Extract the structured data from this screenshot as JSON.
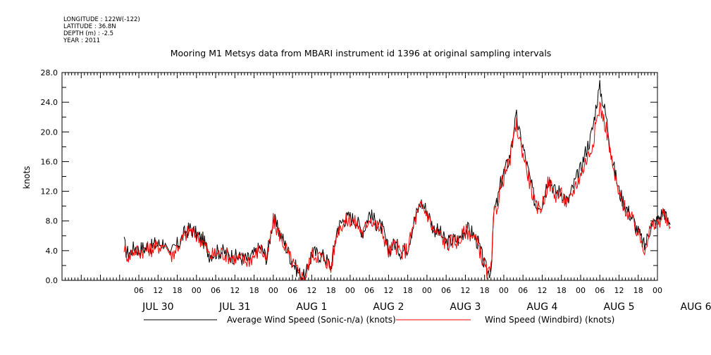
{
  "header": {
    "meta_lines": [
      "LONGITUDE : 122W(-122)",
      "LATITUDE : 36.8N",
      "DEPTH (m) : -2.5",
      "YEAR : 2011"
    ]
  },
  "chart_data": {
    "type": "line",
    "title": "Mooring M1 Metsys data from MBARI instrument id 1396 at original sampling intervals",
    "xlabel": "",
    "ylabel": "knots",
    "ylim": [
      0,
      28
    ],
    "y_ticks": [
      "0.0",
      "4.0",
      "8.0",
      "12.0",
      "16.0",
      "20.0",
      "24.0",
      "28.0"
    ],
    "xlim": [
      -18,
      168
    ],
    "x_hour_ticks": [
      {
        "x": 6,
        "label": "06"
      },
      {
        "x": 12,
        "label": "12"
      },
      {
        "x": 18,
        "label": "18"
      },
      {
        "x": 24,
        "label": "00"
      },
      {
        "x": 30,
        "label": "06"
      },
      {
        "x": 36,
        "label": "12"
      },
      {
        "x": 42,
        "label": "18"
      },
      {
        "x": 48,
        "label": "00"
      },
      {
        "x": 54,
        "label": "06"
      },
      {
        "x": 60,
        "label": "12"
      },
      {
        "x": 66,
        "label": "18"
      },
      {
        "x": 72,
        "label": "00"
      },
      {
        "x": 78,
        "label": "06"
      },
      {
        "x": 84,
        "label": "12"
      },
      {
        "x": 90,
        "label": "18"
      },
      {
        "x": 96,
        "label": "00"
      },
      {
        "x": 102,
        "label": "06"
      },
      {
        "x": 108,
        "label": "12"
      },
      {
        "x": 114,
        "label": "18"
      },
      {
        "x": 120,
        "label": "00"
      },
      {
        "x": 126,
        "label": "06"
      },
      {
        "x": 132,
        "label": "12"
      },
      {
        "x": 138,
        "label": "18"
      },
      {
        "x": 144,
        "label": "00"
      },
      {
        "x": 150,
        "label": "06"
      },
      {
        "x": 156,
        "label": "12"
      },
      {
        "x": 162,
        "label": "18"
      },
      {
        "x": 168,
        "label": "00"
      }
    ],
    "x_day_labels": [
      {
        "x": 12,
        "label": "JUL 30"
      },
      {
        "x": 36,
        "label": "JUL 31"
      },
      {
        "x": 60,
        "label": "AUG  1"
      },
      {
        "x": 84,
        "label": "AUG  2"
      },
      {
        "x": 108,
        "label": "AUG  3"
      },
      {
        "x": 132,
        "label": "AUG  4"
      },
      {
        "x": 156,
        "label": "AUG  5"
      },
      {
        "x": 180,
        "label": "AUG  6"
      }
    ],
    "x_units": "hours since 2011-07-30 00:00",
    "grid": false,
    "legend_position": "bottom",
    "series": [
      {
        "name": "Average Wind Speed (Sonic-n/a) (knots)",
        "color": "#000000",
        "x": [
          1.4,
          2,
          3,
          4,
          5,
          6,
          7,
          8,
          9,
          10,
          11,
          12,
          13,
          14,
          16,
          18,
          19,
          20,
          22,
          24,
          26,
          28,
          30,
          32,
          34,
          36,
          38,
          40,
          42,
          44,
          46,
          48,
          49,
          50,
          52,
          54,
          56,
          58,
          60,
          62,
          64,
          66,
          68,
          70,
          72,
          74,
          76,
          78,
          80,
          82,
          84,
          86,
          88,
          90,
          92,
          94,
          96,
          98,
          100,
          102,
          104,
          106,
          108,
          110,
          112,
          114,
          115,
          116,
          117,
          118,
          119,
          120,
          121,
          122,
          123,
          124,
          125,
          126,
          128,
          130,
          132,
          134,
          136,
          138,
          140,
          142,
          144,
          146,
          147,
          148,
          149,
          150,
          151,
          152,
          154,
          156,
          158,
          160,
          162,
          164,
          166,
          168,
          170,
          171,
          172
        ],
        "y": [
          5.0,
          4.0,
          3.5,
          4.2,
          4.5,
          4.0,
          4.4,
          4.3,
          4.7,
          4.5,
          4.9,
          4.8,
          5.0,
          5.2,
          3.5,
          4.8,
          5.3,
          6.2,
          7.0,
          6.2,
          5.5,
          3.5,
          3.8,
          3.9,
          3.5,
          3.2,
          3.0,
          2.8,
          3.5,
          4.5,
          3.0,
          8.5,
          7.3,
          6.5,
          4.5,
          2.5,
          1.0,
          0.3,
          3.8,
          3.5,
          3.2,
          1.8,
          7.0,
          8.2,
          8.5,
          8.0,
          6.5,
          9.0,
          7.8,
          7.0,
          4.0,
          5.0,
          3.8,
          4.5,
          8.0,
          10.5,
          9.5,
          7.0,
          6.5,
          5.0,
          5.5,
          5.5,
          7.0,
          6.5,
          5.0,
          2.0,
          1.0,
          1.5,
          9.5,
          10.5,
          13.0,
          14.5,
          15.5,
          17.0,
          20.0,
          22.0,
          19.5,
          18.0,
          14.0,
          10.0,
          10.5,
          14.0,
          12.0,
          12.0,
          10.5,
          13.0,
          15.0,
          18.0,
          19.0,
          21.0,
          24.0,
          26.0,
          24.0,
          22.0,
          16.0,
          12.0,
          10.0,
          8.5,
          6.5,
          4.5,
          7.5,
          8.0,
          9.5,
          8.0,
          7.5
        ]
      },
      {
        "name": "Wind Speed (Windbird) (knots)",
        "color": "#ff0000",
        "x": [
          1.4,
          2,
          3,
          4,
          5,
          6,
          7,
          8,
          9,
          10,
          11,
          12,
          13,
          14,
          16,
          18,
          19,
          20,
          22,
          24,
          26,
          28,
          30,
          32,
          34,
          36,
          38,
          40,
          42,
          44,
          46,
          48,
          49,
          50,
          52,
          54,
          56,
          58,
          60,
          62,
          64,
          66,
          68,
          70,
          72,
          74,
          76,
          78,
          80,
          82,
          84,
          86,
          88,
          90,
          92,
          94,
          96,
          98,
          100,
          102,
          104,
          106,
          108,
          110,
          112,
          114,
          115,
          116,
          117,
          118,
          119,
          120,
          121,
          122,
          123,
          124,
          125,
          126,
          128,
          130,
          132,
          134,
          136,
          138,
          140,
          142,
          144,
          146,
          147,
          148,
          149,
          150,
          151,
          152,
          154,
          156,
          158,
          160,
          162,
          164,
          166,
          168,
          170,
          171,
          172
        ],
        "y": [
          4.6,
          3.6,
          3.2,
          3.9,
          4.1,
          3.7,
          4.0,
          4.0,
          4.3,
          4.2,
          4.5,
          4.5,
          4.7,
          4.9,
          3.2,
          4.5,
          5.0,
          5.9,
          6.7,
          6.0,
          5.3,
          3.3,
          3.6,
          3.7,
          3.3,
          3.0,
          2.8,
          2.6,
          3.3,
          4.3,
          2.8,
          8.0,
          7.0,
          6.2,
          4.2,
          2.3,
          0.8,
          0.2,
          3.6,
          3.3,
          3.0,
          1.6,
          6.7,
          7.9,
          8.2,
          7.7,
          6.2,
          8.6,
          7.5,
          6.7,
          3.8,
          4.8,
          3.6,
          4.3,
          7.7,
          10.0,
          9.1,
          6.7,
          6.2,
          4.8,
          5.3,
          5.3,
          6.7,
          6.2,
          4.8,
          1.8,
          0.8,
          1.3,
          9.0,
          10.1,
          12.5,
          14.0,
          15.0,
          16.4,
          19.2,
          21.0,
          18.8,
          17.2,
          13.4,
          9.6,
          10.1,
          13.4,
          11.5,
          11.5,
          10.1,
          12.4,
          14.2,
          16.5,
          17.3,
          19.0,
          21.5,
          23.5,
          22.0,
          20.5,
          15.2,
          11.5,
          9.6,
          8.2,
          6.2,
          4.3,
          7.2,
          7.6,
          9.0,
          7.6,
          7.2
        ]
      }
    ]
  }
}
